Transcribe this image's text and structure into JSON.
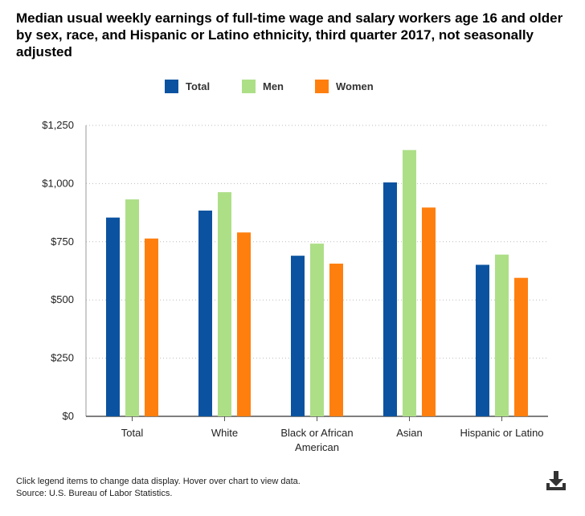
{
  "chart_data": {
    "type": "bar",
    "title": "Median usual weekly earnings of full-time wage and salary workers age 16 and older by sex, race, and Hispanic or Latino ethnicity, third quarter 2017, not seasonally adjusted",
    "categories": [
      [
        "Total"
      ],
      [
        "White"
      ],
      [
        "Black or African",
        "American"
      ],
      [
        "Asian"
      ],
      [
        "Hispanic or Latino"
      ]
    ],
    "series": [
      {
        "name": "Total",
        "color": "#0b53a0",
        "values": [
          854,
          884,
          690,
          1005,
          651
        ]
      },
      {
        "name": "Men",
        "color": "#addf87",
        "values": [
          932,
          963,
          742,
          1144,
          695
        ]
      },
      {
        "name": "Women",
        "color": "#ff7f0e",
        "values": [
          764,
          790,
          656,
          897,
          595
        ]
      }
    ],
    "ylim": [
      0,
      1250
    ],
    "yticks": [
      {
        "value": 0,
        "label": "$0"
      },
      {
        "value": 250,
        "label": "$250"
      },
      {
        "value": 500,
        "label": "$500"
      },
      {
        "value": 750,
        "label": "$750"
      },
      {
        "value": 1000,
        "label": "$1,000"
      },
      {
        "value": 1250,
        "label": "$1,250"
      }
    ],
    "xlabel": "",
    "ylabel": "",
    "grid": "horizontal dotted",
    "legend_position": "top-center"
  },
  "footer": {
    "note": "Click legend items to change data display. Hover over chart to view data.",
    "source": "Source: U.S. Bureau of Labor Statistics."
  },
  "icons": {
    "download": "download-icon"
  }
}
